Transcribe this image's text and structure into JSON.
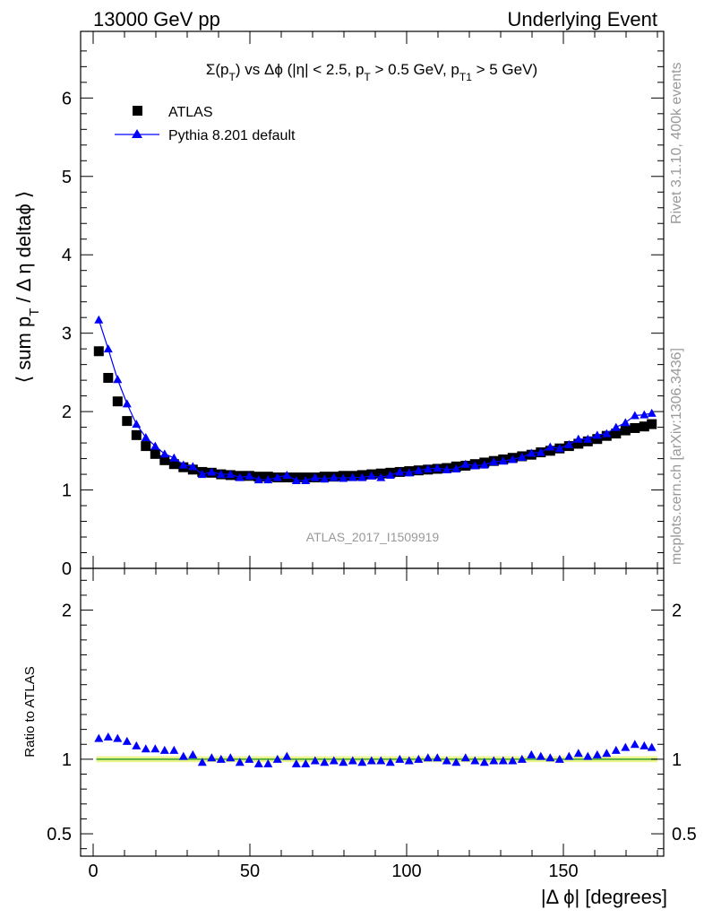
{
  "header": {
    "left": "13000 GeV pp",
    "right": "Underlying Event"
  },
  "side_labels": {
    "rivet": "Rivet 3.1.10,  400k events",
    "mcplots": "mcplots.cern.ch [arXiv:1306.3436]"
  },
  "chart_data": [
    {
      "type": "scatter",
      "title_parts": {
        "a": "Σ(p",
        "a_sub": "T",
        "b": ") vs Δϕ (|η| < 2.5, p",
        "b_sub": "T",
        "c": " > 0.5 GeV, p",
        "c_sub": "T1",
        "d": " > 5 GeV)"
      },
      "ylabel": "⟨ sum p_T / Δ η deltaϕ ⟩",
      "ylabel_parts": {
        "a": "⟨ sum p",
        "sub": "T",
        "b": " / Δ η deltaϕ ⟩"
      },
      "watermark": "ATLAS_2017_I1509919",
      "xlim": [
        -4,
        182
      ],
      "ylim": [
        0,
        6.85
      ],
      "y_ticks": [
        0,
        1,
        2,
        3,
        4,
        5,
        6
      ],
      "legend_position": "top-left",
      "series": [
        {
          "name": "ATLAS",
          "color": "#000000",
          "marker": "square",
          "x": [
            1.8,
            4.8,
            7.8,
            10.8,
            13.8,
            16.8,
            19.8,
            22.8,
            25.8,
            28.8,
            31.8,
            34.8,
            37.8,
            40.8,
            43.8,
            46.8,
            49.8,
            52.8,
            55.8,
            58.8,
            61.8,
            64.8,
            67.8,
            70.8,
            73.8,
            76.8,
            79.8,
            82.8,
            85.8,
            88.8,
            91.8,
            94.8,
            97.8,
            100.8,
            103.8,
            106.8,
            109.8,
            112.8,
            115.8,
            118.8,
            121.8,
            124.8,
            127.8,
            130.8,
            133.8,
            136.8,
            139.8,
            142.8,
            145.8,
            148.8,
            151.8,
            154.8,
            157.8,
            160.8,
            163.8,
            166.8,
            169.8,
            172.8,
            175.8,
            178.2
          ],
          "y": [
            2.77,
            2.43,
            2.13,
            1.88,
            1.7,
            1.56,
            1.46,
            1.38,
            1.33,
            1.29,
            1.26,
            1.23,
            1.22,
            1.2,
            1.19,
            1.18,
            1.18,
            1.17,
            1.17,
            1.16,
            1.16,
            1.16,
            1.16,
            1.16,
            1.17,
            1.17,
            1.18,
            1.18,
            1.19,
            1.2,
            1.21,
            1.22,
            1.23,
            1.24,
            1.25,
            1.26,
            1.27,
            1.28,
            1.3,
            1.31,
            1.33,
            1.35,
            1.37,
            1.39,
            1.41,
            1.43,
            1.45,
            1.48,
            1.5,
            1.53,
            1.56,
            1.59,
            1.62,
            1.65,
            1.69,
            1.72,
            1.76,
            1.79,
            1.81,
            1.84
          ]
        },
        {
          "name": "Pythia 8.201 default",
          "color": "#0000ff",
          "marker": "triangle",
          "x": [
            1.8,
            4.8,
            7.8,
            10.8,
            13.8,
            16.8,
            19.8,
            22.8,
            25.8,
            28.8,
            31.8,
            34.8,
            37.8,
            40.8,
            43.8,
            46.8,
            49.8,
            52.8,
            55.8,
            58.8,
            61.8,
            64.8,
            67.8,
            70.8,
            73.8,
            76.8,
            79.8,
            82.8,
            85.8,
            88.8,
            91.8,
            94.8,
            97.8,
            100.8,
            103.8,
            106.8,
            109.8,
            112.8,
            115.8,
            118.8,
            121.8,
            124.8,
            127.8,
            130.8,
            133.8,
            136.8,
            139.8,
            142.8,
            145.8,
            148.8,
            151.8,
            154.8,
            157.8,
            160.8,
            163.8,
            166.8,
            169.8,
            172.8,
            175.8,
            178.2
          ],
          "y": [
            3.17,
            2.8,
            2.41,
            2.1,
            1.84,
            1.67,
            1.56,
            1.46,
            1.41,
            1.32,
            1.3,
            1.2,
            1.23,
            1.2,
            1.2,
            1.16,
            1.18,
            1.13,
            1.13,
            1.16,
            1.19,
            1.12,
            1.12,
            1.16,
            1.14,
            1.16,
            1.15,
            1.16,
            1.16,
            1.18,
            1.16,
            1.19,
            1.23,
            1.22,
            1.25,
            1.27,
            1.28,
            1.26,
            1.27,
            1.33,
            1.31,
            1.32,
            1.36,
            1.37,
            1.39,
            1.42,
            1.47,
            1.48,
            1.55,
            1.53,
            1.58,
            1.65,
            1.65,
            1.7,
            1.72,
            1.8,
            1.86,
            1.95,
            1.96,
            1.98
          ]
        }
      ]
    },
    {
      "type": "scatter",
      "ylabel": "Ratio to ATLAS",
      "xlabel": "|Δ ϕ| [degrees]",
      "xlim": [
        -4,
        182
      ],
      "ylim": [
        0.35,
        2.28
      ],
      "x_ticks": [
        0,
        50,
        100,
        150
      ],
      "y_ticks": [
        0.5,
        1,
        2
      ],
      "band": {
        "low": 0.98,
        "high": 1.02,
        "fill": "#ecf58c",
        "line": "#2f9e2f"
      },
      "series": [
        {
          "name": "Pythia 8.201 default",
          "color": "#0000ff",
          "marker": "triangle",
          "x": [
            1.8,
            4.8,
            7.8,
            10.8,
            13.8,
            16.8,
            19.8,
            22.8,
            25.8,
            28.8,
            31.8,
            34.8,
            37.8,
            40.8,
            43.8,
            46.8,
            49.8,
            52.8,
            55.8,
            58.8,
            61.8,
            64.8,
            67.8,
            70.8,
            73.8,
            76.8,
            79.8,
            82.8,
            85.8,
            88.8,
            91.8,
            94.8,
            97.8,
            100.8,
            103.8,
            106.8,
            109.8,
            112.8,
            115.8,
            118.8,
            121.8,
            124.8,
            127.8,
            130.8,
            133.8,
            136.8,
            139.8,
            142.8,
            145.8,
            148.8,
            151.8,
            154.8,
            157.8,
            160.8,
            163.8,
            166.8,
            169.8,
            172.8,
            175.8,
            178.2
          ],
          "y": [
            1.14,
            1.15,
            1.14,
            1.12,
            1.09,
            1.07,
            1.07,
            1.06,
            1.06,
            1.02,
            1.03,
            0.98,
            1.01,
            1.0,
            1.01,
            0.98,
            1.0,
            0.97,
            0.97,
            1.0,
            1.02,
            0.97,
            0.97,
            0.99,
            0.98,
            0.99,
            0.98,
            0.99,
            0.98,
            0.99,
            0.99,
            0.98,
            1.0,
            0.99,
            1.0,
            1.01,
            1.01,
            0.99,
            0.98,
            1.01,
            0.99,
            0.98,
            0.99,
            0.99,
            0.99,
            1.0,
            1.03,
            1.02,
            1.01,
            1.0,
            1.02,
            1.04,
            1.02,
            1.03,
            1.04,
            1.06,
            1.08,
            1.1,
            1.09,
            1.08
          ]
        }
      ]
    }
  ]
}
